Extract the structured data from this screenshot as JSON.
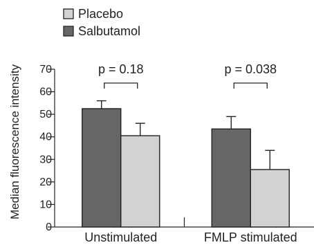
{
  "chart_data": {
    "type": "bar",
    "categories": [
      "Unstimulated",
      "FMLP stimulated"
    ],
    "series": [
      {
        "name": "Salbutamol",
        "values": [
          52.5,
          43.5
        ],
        "error": [
          3.5,
          5.5
        ],
        "color": "#666666"
      },
      {
        "name": "Placebo",
        "values": [
          40.5,
          25.5
        ],
        "error": [
          5.5,
          8.5
        ],
        "color": "#d2d2d2"
      }
    ],
    "legend_order": [
      "Placebo",
      "Salbutamol"
    ],
    "ylabel": "Median fluorescence intensity",
    "ylim": [
      0,
      70
    ],
    "yticks": [
      0,
      10,
      20,
      30,
      40,
      50,
      60,
      70
    ],
    "ytick_labels": [
      "0",
      "10",
      "20",
      "30",
      "40",
      "50",
      "60",
      "70"
    ],
    "annotations": [
      {
        "category": "Unstimulated",
        "text": "p = 0.18"
      },
      {
        "category": "FMLP stimulated",
        "text": "p = 0.038"
      }
    ],
    "grid": false,
    "legend_position": "top-left"
  }
}
